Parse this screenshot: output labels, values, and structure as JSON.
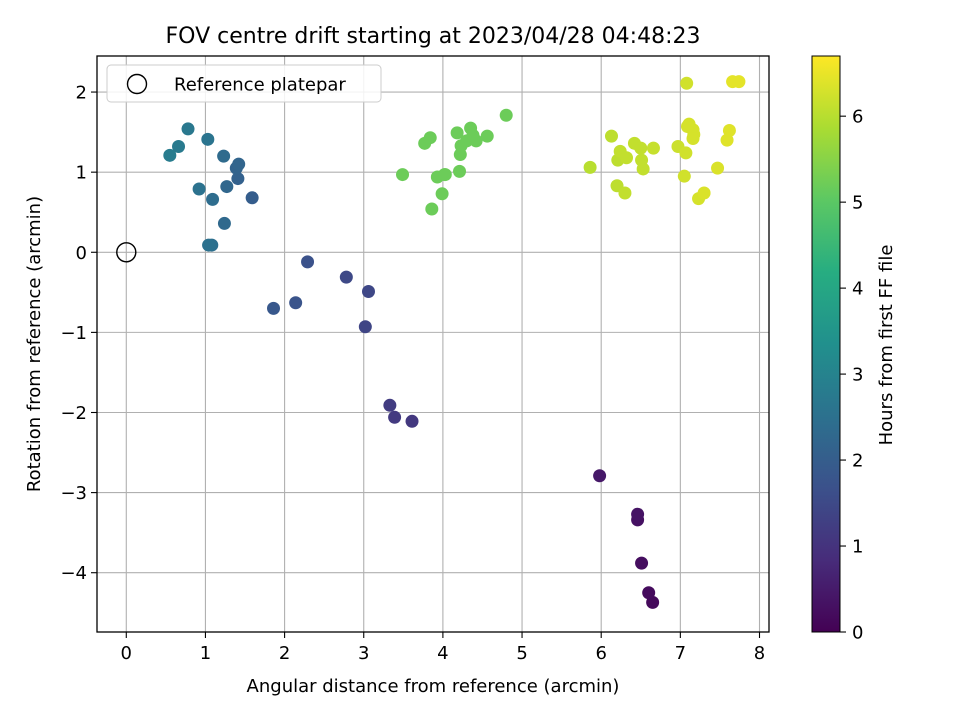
{
  "chart_data": {
    "type": "scatter",
    "title": "FOV centre drift starting at 2023/04/28 04:48:23",
    "xlabel": "Angular distance from reference (arcmin)",
    "ylabel": "Rotation from reference (arcmin)",
    "xlim": [
      -0.37,
      8.12
    ],
    "ylim": [
      -4.74,
      2.45
    ],
    "xticks": [
      0,
      1,
      2,
      3,
      4,
      5,
      6,
      7,
      8
    ],
    "yticks": [
      -4,
      -3,
      -2,
      -1,
      0,
      1,
      2
    ],
    "grid": true,
    "legend": {
      "placement": "top-left",
      "entries": [
        {
          "label": "Reference platepar",
          "marker": "open-circle"
        }
      ]
    },
    "reference_point": {
      "x": 0,
      "y": 0
    },
    "colorbar": {
      "label": "Hours from first FF file",
      "colormap": "viridis",
      "range": [
        0,
        6.7
      ],
      "ticks": [
        0,
        1,
        2,
        3,
        4,
        5,
        6
      ]
    },
    "series": [
      {
        "x": [
          6.65,
          6.6,
          6.51,
          6.46,
          6.46,
          5.98
        ],
        "y": [
          -4.37,
          -4.25,
          -3.88,
          -3.34,
          -3.27,
          -2.79
        ],
        "c": [
          0.15,
          0.2,
          0.25,
          0.3,
          0.35,
          0.45
        ]
      },
      {
        "x": [
          3.61,
          3.39,
          3.33,
          3.02,
          3.06,
          2.78,
          2.29,
          2.14,
          1.86
        ],
        "y": [
          -2.11,
          -2.06,
          -1.91,
          -0.93,
          -0.49,
          -0.31,
          -0.12,
          -0.63,
          -0.7
        ],
        "c": [
          1.1,
          1.15,
          1.2,
          1.4,
          1.45,
          1.5,
          1.7,
          1.75,
          1.85
        ]
      },
      {
        "x": [
          1.59,
          1.41,
          1.39,
          1.42,
          1.27,
          1.24,
          1.23,
          1.09,
          1.08,
          1.04,
          0.92,
          1.03,
          0.78,
          0.66,
          0.55
        ],
        "y": [
          0.68,
          0.92,
          1.05,
          1.1,
          0.82,
          0.36,
          1.2,
          0.66,
          0.09,
          0.09,
          0.79,
          1.41,
          1.54,
          1.32,
          1.21
        ],
        "c": [
          2.0,
          2.1,
          2.15,
          2.2,
          2.25,
          2.3,
          2.35,
          2.4,
          2.45,
          2.5,
          2.55,
          2.6,
          2.7,
          2.75,
          2.8
        ]
      },
      {
        "x": [
          3.49,
          3.77,
          3.84,
          3.86,
          3.93,
          3.99,
          4.02,
          4.03,
          4.18,
          4.21,
          4.22,
          4.23,
          4.3,
          4.35,
          4.38,
          4.42,
          4.56,
          4.8
        ],
        "y": [
          0.97,
          1.36,
          1.43,
          0.54,
          0.94,
          0.73,
          0.97,
          0.97,
          1.49,
          1.01,
          1.22,
          1.33,
          1.39,
          1.55,
          1.46,
          1.39,
          1.45,
          1.71
        ],
        "c": [
          5.2,
          5.2,
          5.2,
          5.2,
          5.2,
          5.2,
          5.2,
          5.2,
          5.2,
          5.2,
          5.2,
          5.2,
          5.2,
          5.2,
          5.2,
          5.2,
          5.2,
          5.2
        ]
      },
      {
        "x": [
          5.86,
          6.13,
          6.2,
          6.21,
          6.24,
          6.3,
          6.32,
          6.42,
          6.5,
          6.51,
          6.53,
          6.66,
          6.97,
          7.05,
          7.07,
          7.08,
          7.11,
          7.16,
          7.17,
          7.16,
          7.23,
          7.3,
          7.47,
          7.59,
          7.62,
          7.66,
          7.74,
          7.09
        ],
        "y": [
          1.06,
          1.45,
          0.83,
          1.15,
          1.26,
          0.74,
          1.18,
          1.36,
          1.3,
          1.15,
          1.04,
          1.3,
          1.32,
          0.95,
          1.24,
          2.11,
          1.6,
          1.53,
          1.47,
          1.42,
          0.67,
          0.74,
          1.05,
          1.4,
          1.52,
          2.13,
          2.13,
          1.57
        ],
        "c": [
          6.0,
          6.05,
          6.05,
          6.05,
          6.1,
          6.1,
          6.1,
          6.1,
          6.1,
          6.1,
          6.1,
          6.15,
          6.2,
          6.25,
          6.25,
          6.25,
          6.3,
          6.3,
          6.3,
          6.3,
          6.3,
          6.35,
          6.35,
          6.4,
          6.4,
          6.45,
          6.45,
          6.3
        ]
      }
    ]
  }
}
